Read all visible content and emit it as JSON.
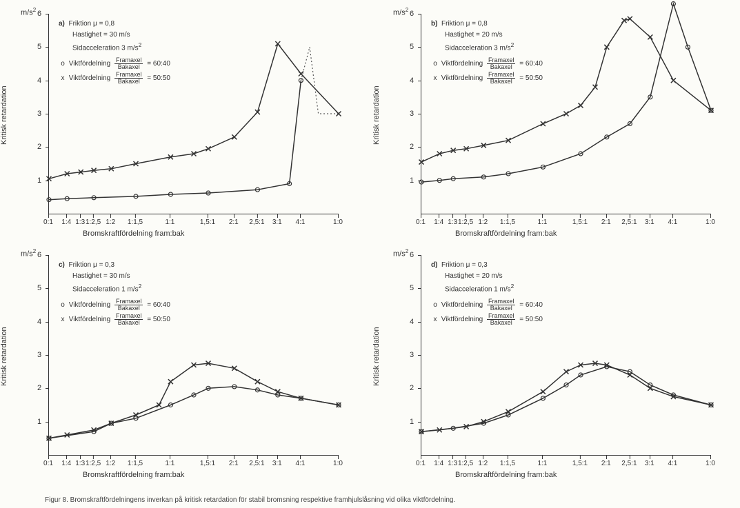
{
  "yunit": "m/s²",
  "ylabel": "Kritisk retardation",
  "xlabel": "Bromskraftfördelning fram:bak",
  "caption": "Figur 8.  Bromskraftfördelningens inverkan på kritisk retardation för stabil bromsning respektive framhjulslåsning vid olika viktfördelning.",
  "colors": {
    "line": "#333333",
    "dashed": "#555555",
    "bg": "#fcfcf8"
  },
  "y_ticks": [
    1,
    2,
    3,
    4,
    5,
    6
  ],
  "x_ticks": [
    "0:1",
    "1:4",
    "1:3",
    "1:2,5",
    "1:2",
    "1:1,5",
    "1:1",
    "1,5:1",
    "2:1",
    "2,5:1",
    "3:1",
    "4:1",
    "1:0"
  ],
  "x_positions": [
    0,
    0.0625,
    0.11,
    0.155,
    0.215,
    0.3,
    0.42,
    0.55,
    0.64,
    0.72,
    0.79,
    0.87,
    1.0
  ],
  "panels": {
    "a": {
      "tag": "a)",
      "lines": [
        "Friktion μ = 0,8",
        "Hastighet = 30 m/s",
        "Sidacceleration  3 m/s²"
      ],
      "weight_o": "60:40",
      "weight_x": "50:50",
      "series_o": {
        "marker": "o",
        "points": [
          [
            0,
            0.42
          ],
          [
            0.0625,
            0.45
          ],
          [
            0.155,
            0.48
          ],
          [
            0.3,
            0.52
          ],
          [
            0.42,
            0.58
          ],
          [
            0.55,
            0.62
          ],
          [
            0.72,
            0.72
          ],
          [
            0.83,
            0.9
          ],
          [
            0.87,
            4.0
          ]
        ],
        "dashed_tail": [
          [
            0.87,
            4.0
          ],
          [
            0.9,
            5.0
          ],
          [
            0.93,
            3.0
          ],
          [
            1.0,
            3.0
          ]
        ]
      },
      "series_x": {
        "marker": "x",
        "points": [
          [
            0,
            1.05
          ],
          [
            0.0625,
            1.2
          ],
          [
            0.11,
            1.25
          ],
          [
            0.155,
            1.3
          ],
          [
            0.215,
            1.35
          ],
          [
            0.3,
            1.5
          ],
          [
            0.42,
            1.7
          ],
          [
            0.5,
            1.8
          ],
          [
            0.55,
            1.95
          ],
          [
            0.64,
            2.3
          ],
          [
            0.72,
            3.05
          ],
          [
            0.79,
            5.1
          ],
          [
            0.87,
            4.2
          ],
          [
            1.0,
            3.0
          ]
        ]
      }
    },
    "b": {
      "tag": "b)",
      "lines": [
        "Friktion μ = 0,8",
        "Hastighet = 20 m/s",
        "Sidacceleration  3 m/s²"
      ],
      "weight_o": "60:40",
      "weight_x": "50:50",
      "series_o": {
        "marker": "o",
        "points": [
          [
            0,
            0.95
          ],
          [
            0.0625,
            1.0
          ],
          [
            0.11,
            1.05
          ],
          [
            0.215,
            1.1
          ],
          [
            0.3,
            1.2
          ],
          [
            0.42,
            1.4
          ],
          [
            0.55,
            1.8
          ],
          [
            0.64,
            2.3
          ],
          [
            0.72,
            2.7
          ],
          [
            0.79,
            3.5
          ],
          [
            0.87,
            6.3
          ],
          [
            0.92,
            5.0
          ],
          [
            1.0,
            3.1
          ]
        ]
      },
      "series_x": {
        "marker": "x",
        "points": [
          [
            0,
            1.55
          ],
          [
            0.0625,
            1.8
          ],
          [
            0.11,
            1.9
          ],
          [
            0.155,
            1.95
          ],
          [
            0.215,
            2.05
          ],
          [
            0.3,
            2.2
          ],
          [
            0.42,
            2.7
          ],
          [
            0.5,
            3.0
          ],
          [
            0.55,
            3.25
          ],
          [
            0.6,
            3.8
          ],
          [
            0.64,
            5.0
          ],
          [
            0.7,
            5.8
          ],
          [
            0.72,
            5.85
          ],
          [
            0.79,
            5.3
          ],
          [
            0.87,
            4.0
          ],
          [
            1.0,
            3.1
          ]
        ]
      }
    },
    "c": {
      "tag": "c)",
      "lines": [
        "Friktion μ = 0,3",
        "Hastighet = 30 m/s",
        "Sidacceleration  1 m/s²"
      ],
      "weight_o": "60:40",
      "weight_x": "50:50",
      "series_o": {
        "marker": "o",
        "points": [
          [
            0,
            0.5
          ],
          [
            0.155,
            0.7
          ],
          [
            0.215,
            0.95
          ],
          [
            0.3,
            1.1
          ],
          [
            0.42,
            1.5
          ],
          [
            0.5,
            1.8
          ],
          [
            0.55,
            2.0
          ],
          [
            0.64,
            2.05
          ],
          [
            0.72,
            1.95
          ],
          [
            0.79,
            1.8
          ],
          [
            0.87,
            1.7
          ],
          [
            1.0,
            1.5
          ]
        ]
      },
      "series_x": {
        "marker": "x",
        "points": [
          [
            0,
            0.5
          ],
          [
            0.0625,
            0.6
          ],
          [
            0.155,
            0.75
          ],
          [
            0.215,
            0.95
          ],
          [
            0.3,
            1.2
          ],
          [
            0.38,
            1.5
          ],
          [
            0.42,
            2.2
          ],
          [
            0.5,
            2.7
          ],
          [
            0.55,
            2.75
          ],
          [
            0.64,
            2.6
          ],
          [
            0.72,
            2.2
          ],
          [
            0.79,
            1.9
          ],
          [
            0.87,
            1.7
          ],
          [
            1.0,
            1.5
          ]
        ]
      }
    },
    "d": {
      "tag": "d)",
      "lines": [
        "Friktion μ = 0,3",
        "Hastighet = 20 m/s",
        "Sidacceleration  1 m/s²"
      ],
      "weight_o": "60:40",
      "weight_x": "50:50",
      "series_o": {
        "marker": "o",
        "points": [
          [
            0,
            0.7
          ],
          [
            0.11,
            0.8
          ],
          [
            0.215,
            0.95
          ],
          [
            0.3,
            1.2
          ],
          [
            0.42,
            1.7
          ],
          [
            0.5,
            2.1
          ],
          [
            0.55,
            2.4
          ],
          [
            0.64,
            2.65
          ],
          [
            0.72,
            2.5
          ],
          [
            0.79,
            2.1
          ],
          [
            0.87,
            1.8
          ],
          [
            1.0,
            1.5
          ]
        ]
      },
      "series_x": {
        "marker": "x",
        "points": [
          [
            0,
            0.7
          ],
          [
            0.0625,
            0.75
          ],
          [
            0.155,
            0.85
          ],
          [
            0.215,
            1.0
          ],
          [
            0.3,
            1.3
          ],
          [
            0.42,
            1.9
          ],
          [
            0.5,
            2.5
          ],
          [
            0.55,
            2.7
          ],
          [
            0.6,
            2.75
          ],
          [
            0.64,
            2.7
          ],
          [
            0.72,
            2.4
          ],
          [
            0.79,
            2.0
          ],
          [
            0.87,
            1.75
          ],
          [
            1.0,
            1.5
          ]
        ]
      }
    }
  }
}
